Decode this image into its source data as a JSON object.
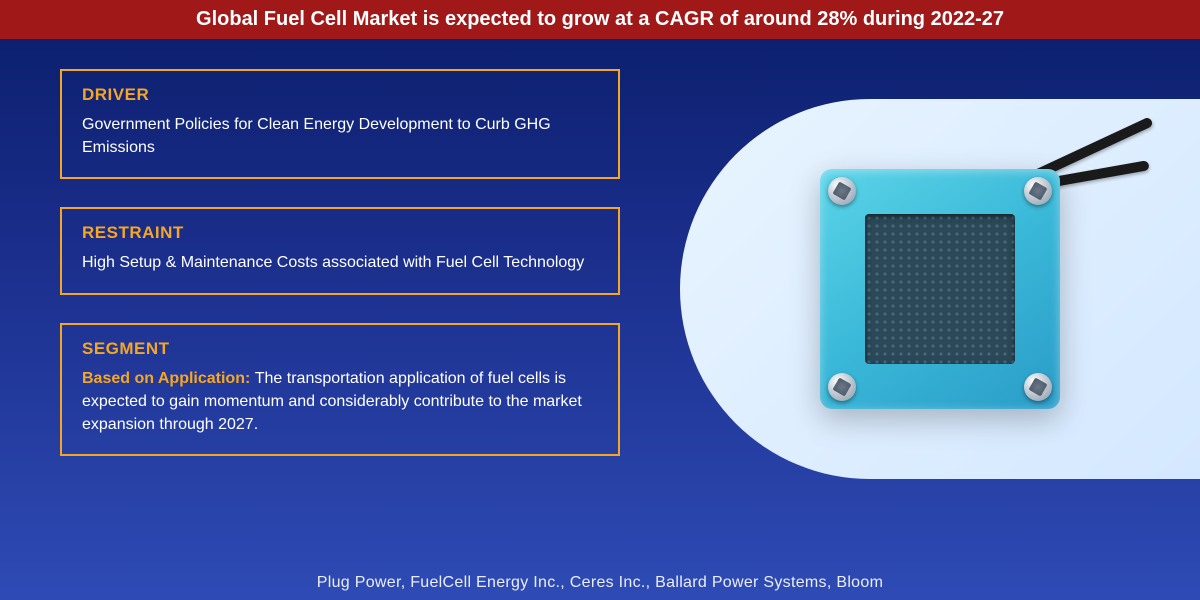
{
  "header": {
    "title": "Global Fuel Cell Market is expected to grow at a CAGR of around 28% during 2022-27",
    "background_color": "#a01818",
    "text_color": "#ffffff",
    "font_size": 20
  },
  "background": {
    "gradient_top": "#0a1e6b",
    "gradient_mid": "#1a2d8a",
    "gradient_bottom": "#2e4bb5"
  },
  "boxes": [
    {
      "label": "DRIVER",
      "body": "Government Policies for Clean Energy Development to Curb GHG Emissions",
      "lead": ""
    },
    {
      "label": "RESTRAINT",
      "body": "High Setup & Maintenance Costs associated with Fuel Cell Technology",
      "lead": ""
    },
    {
      "label": "SEGMENT",
      "lead": "Based on Application: ",
      "body": "The transportation application of fuel cells is expected to gain momentum and considerably contribute to the market expansion through 2027."
    }
  ],
  "box_style": {
    "border_color": "#f5a623",
    "label_color": "#f5a623",
    "body_color": "#ffffff",
    "label_font_size": 17,
    "body_font_size": 16,
    "border_width": 2
  },
  "hero": {
    "background_gradient_start": "#e8f4ff",
    "background_gradient_end": "#d4e8ff",
    "device_color_light": "#5ad4e8",
    "device_color_dark": "#2a9cc8",
    "grid_color": "#2a4858",
    "bolt_color": "#c8d0d8",
    "cable_color": "#1a1a1a"
  },
  "footer": {
    "text": "Plug Power, FuelCell Energy Inc., Ceres Inc., Ballard Power Systems, Bloom"
  }
}
